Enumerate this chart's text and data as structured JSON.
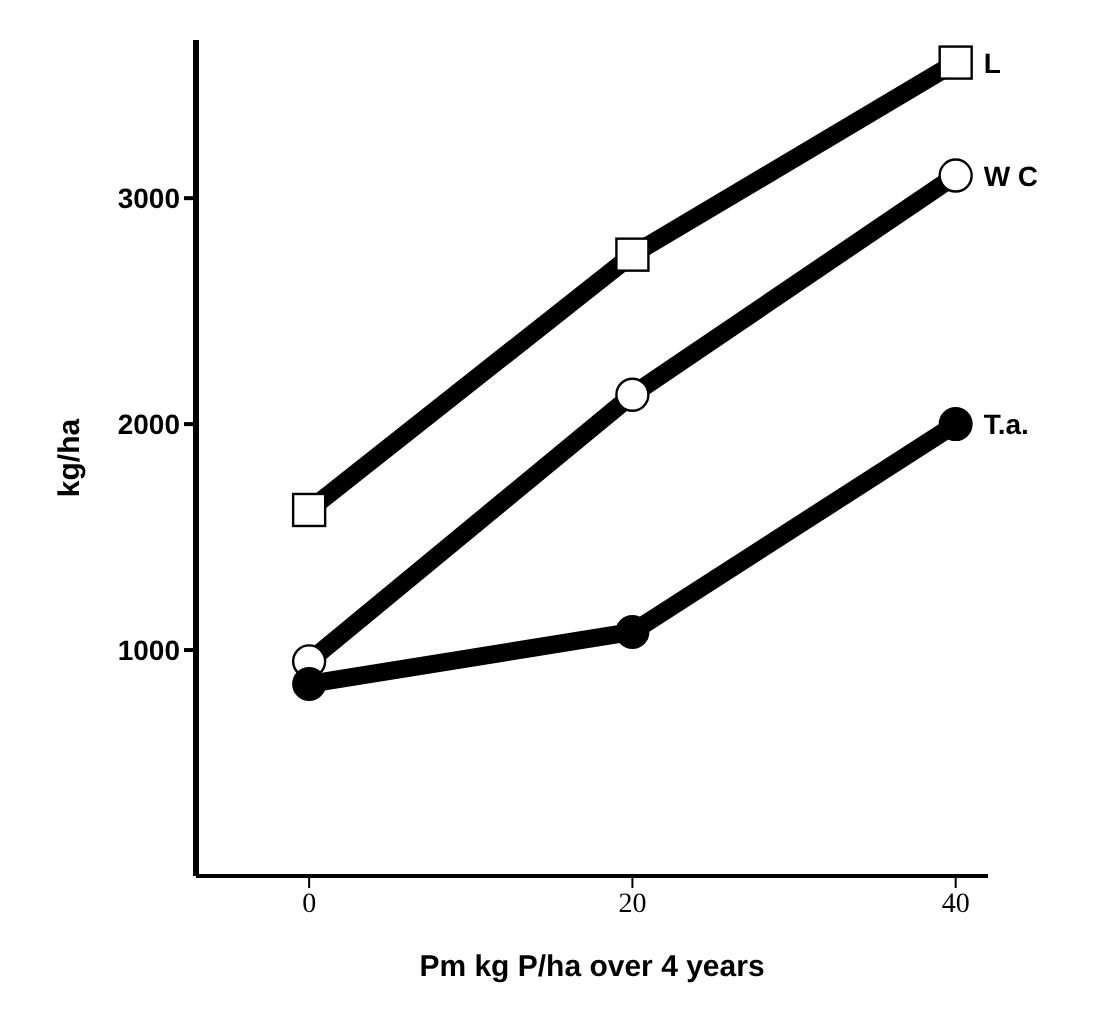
{
  "chart_data": {
    "type": "line",
    "xlabel": "Pm kg P/ha over 4 years",
    "ylabel": "kg/ha",
    "x": [
      0,
      20,
      40
    ],
    "series": [
      {
        "name": "L",
        "color": "#000000",
        "marker": "square",
        "values": [
          1620,
          2750,
          3600
        ]
      },
      {
        "name": "W C",
        "color": "#000000",
        "marker": "circle",
        "values": [
          950,
          2130,
          3100
        ]
      },
      {
        "name": "T.a.",
        "color": "#000000",
        "marker": "filled-circle",
        "values": [
          850,
          1080,
          2000
        ]
      }
    ],
    "xlim": [
      -7,
      42
    ],
    "xticks": [
      0,
      20,
      40
    ],
    "ylim": [
      0,
      3700
    ],
    "yticks": [
      1000,
      2000,
      3000
    ],
    "grid": false,
    "line_style": "solid"
  }
}
